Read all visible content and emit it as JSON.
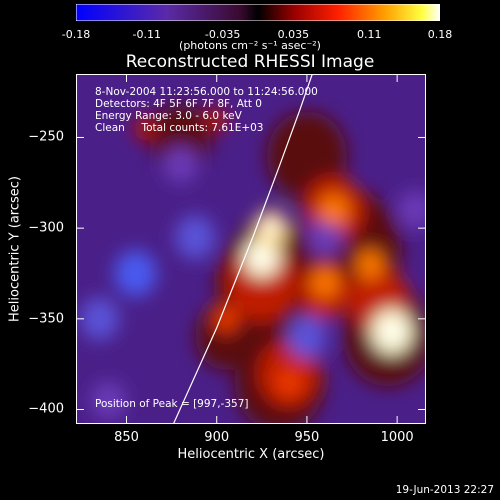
{
  "colorbar": {
    "ticks": [
      "-0.18",
      "-0.11",
      "-0.035",
      "0.035",
      "0.11",
      "0.18"
    ],
    "units": "(photons cm⁻² s⁻¹ asec⁻²)",
    "range": [
      -0.18,
      0.18
    ]
  },
  "info": {
    "date": "8-Nov-2004 11:23:56.000 to 11:24:56.000",
    "detectors": "Detectors: 4F 5F 6F 7F 8F, Att 0",
    "energy": "Energy Range: 3.0 - 6.0 keV",
    "clean": "Clean     Total counts: 7.61E+03",
    "peak": "Position of Peak = [997,-357]"
  },
  "timestamp": "19-Jun-2013 22:27",
  "colors": {
    "background": "#000000",
    "text": "#ffffff",
    "limb": "#ffffff"
  },
  "chart_data": {
    "type": "heatmap",
    "title": "Reconstructed RHESSI Image",
    "xlabel": "Heliocentric X (arcsec)",
    "ylabel": "Heliocentric Y (arcsec)",
    "xlim": [
      822,
      1016
    ],
    "ylim": [
      -408,
      -215
    ],
    "xticks": [
      850,
      900,
      950,
      1000
    ],
    "xtick_labels": [
      "850",
      "900",
      "950",
      "1000"
    ],
    "yticks": [
      -250,
      -300,
      -350,
      -400
    ],
    "ytick_labels": [
      "−250",
      "−300",
      "−350",
      "−400"
    ],
    "colormap": "blue-purple-red-yellow-white",
    "peaks": [
      {
        "x": 997,
        "y": -357,
        "value": 0.18
      },
      {
        "x": 925,
        "y": -316,
        "value": 0.15
      },
      {
        "x": 930,
        "y": -300,
        "value": 0.12
      },
      {
        "x": 965,
        "y": -290,
        "value": 0.09
      },
      {
        "x": 960,
        "y": -330,
        "value": 0.08
      },
      {
        "x": 985,
        "y": -320,
        "value": 0.08
      },
      {
        "x": 940,
        "y": -385,
        "value": 0.07
      },
      {
        "x": 905,
        "y": -350,
        "value": 0.06
      },
      {
        "x": 860,
        "y": -245,
        "value": 0.04
      },
      {
        "x": 900,
        "y": -240,
        "value": 0.04
      }
    ],
    "troughs": [
      {
        "x": 855,
        "y": -325,
        "value": -0.12
      },
      {
        "x": 888,
        "y": -305,
        "value": -0.1
      },
      {
        "x": 835,
        "y": -350,
        "value": -0.09
      },
      {
        "x": 950,
        "y": -360,
        "value": -0.09
      },
      {
        "x": 960,
        "y": -305,
        "value": -0.07
      },
      {
        "x": 1010,
        "y": -290,
        "value": -0.06
      },
      {
        "x": 840,
        "y": -395,
        "value": -0.06
      },
      {
        "x": 880,
        "y": -265,
        "value": -0.05
      }
    ],
    "limb_line": [
      [
        876,
        -408
      ],
      [
        900,
        -355
      ],
      [
        920,
        -305
      ],
      [
        935,
        -265
      ],
      [
        946,
        -235
      ],
      [
        953,
        -215
      ]
    ]
  }
}
